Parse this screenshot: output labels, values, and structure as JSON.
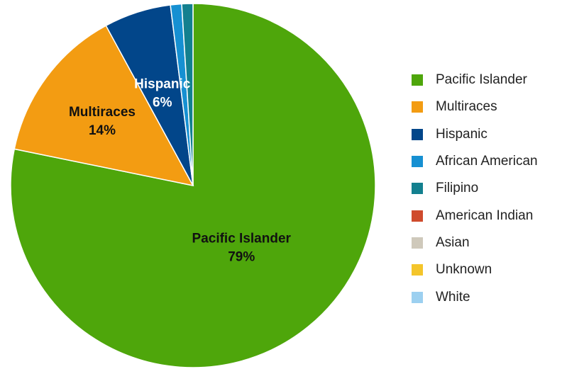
{
  "chart_data": {
    "type": "pie",
    "categories": [
      "Pacific Islander",
      "Multiraces",
      "Hispanic",
      "African American",
      "Filipino",
      "American Indian",
      "Asian",
      "Unknown",
      "White"
    ],
    "values": [
      79,
      14,
      6,
      1,
      1,
      0,
      0,
      0,
      0
    ],
    "data_labels": [
      {
        "name": "Pacific Islander",
        "pct": "79%"
      },
      {
        "name": "Multiraces",
        "pct": "14%"
      },
      {
        "name": "Hispanic",
        "pct": "6%"
      }
    ],
    "colors": [
      "#4ea60b",
      "#f39c12",
      "#02468a",
      "#1690d2",
      "#13808f",
      "#cf4b2d",
      "#cfc9bb",
      "#f4c52b",
      "#9cd0f0"
    ],
    "label_colors": [
      "#111111",
      "#111111",
      "#ffffff"
    ],
    "legend_position": "right"
  }
}
